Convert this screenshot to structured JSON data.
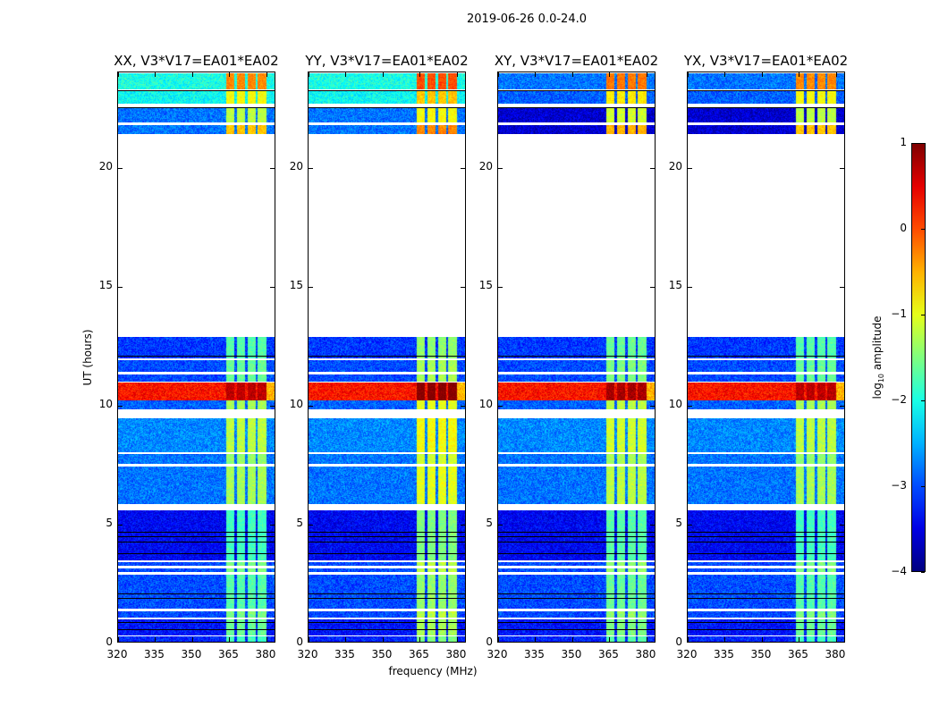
{
  "chart_data": {
    "type": "heatmap",
    "suptitle": "2019-06-26 0.0-24.0",
    "xlabel": "frequency (MHz)",
    "ylabel": "UT (hours)",
    "xlim": [
      320,
      384
    ],
    "ylim": [
      0,
      24
    ],
    "xticks": [
      "320",
      "335",
      "350",
      "365",
      "380"
    ],
    "xtick_values": [
      320,
      335,
      350,
      365,
      380
    ],
    "yticks": [
      "0",
      "5",
      "10",
      "15",
      "20"
    ],
    "ytick_values": [
      0,
      5,
      10,
      15,
      20
    ],
    "colorbar": {
      "label": "log10 amplitude",
      "label_main": "log",
      "label_sub": "10",
      "label_rest": " amplitude",
      "range": [
        -4,
        1
      ],
      "ticks": [
        "1",
        "0",
        "−1",
        "−2",
        "−3",
        "−4"
      ],
      "tick_values": [
        1,
        0,
        -1,
        -2,
        -3,
        -4
      ],
      "colormap": "jet"
    },
    "rfi_channels_mhz": [
      [
        363.5,
        366.8
      ],
      [
        367.8,
        371.2
      ],
      [
        372.2,
        375.5
      ],
      [
        376.3,
        379.8
      ]
    ],
    "segments_note": "[start_hour, end_hour, background log10 amp, RFI log10 amp]",
    "segments": [
      [
        0.0,
        0.3,
        -3.2,
        -1.8
      ],
      [
        0.35,
        1.0,
        -3.3,
        -1.6
      ],
      [
        1.1,
        1.35,
        -3.0,
        -1.5
      ],
      [
        1.45,
        2.9,
        -3.0,
        -1.7
      ],
      [
        3.0,
        3.15,
        -3.0,
        -1.5
      ],
      [
        3.25,
        3.4,
        -3.0,
        -1.5
      ],
      [
        3.5,
        5.6,
        -3.4,
        -1.8
      ],
      [
        5.85,
        7.45,
        -2.8,
        -1.3
      ],
      [
        7.55,
        7.95,
        -2.8,
        -1.4
      ],
      [
        8.05,
        9.45,
        -2.7,
        -1.2
      ],
      [
        9.85,
        10.2,
        -2.9,
        -1.3
      ],
      [
        10.2,
        10.95,
        0.3,
        0.7
      ],
      [
        11.0,
        11.3,
        -3.0,
        -1.6
      ],
      [
        11.4,
        11.9,
        -3.0,
        -1.6
      ],
      [
        12.0,
        12.9,
        -3.1,
        -1.7
      ],
      [
        21.4,
        21.8,
        -2.8,
        -0.6
      ],
      [
        21.9,
        22.5,
        -2.8,
        -1.2
      ],
      [
        22.7,
        23.2,
        -2.1,
        -0.9
      ],
      [
        23.3,
        23.95,
        -2.0,
        -0.3
      ]
    ],
    "flag_lines_hours": [
      0.6,
      0.9,
      1.9,
      2.1,
      3.8,
      4.3,
      4.5,
      4.7,
      12.1,
      22.55,
      23.25
    ],
    "panels": [
      {
        "title": "XX, V3*V17=EA01*EA02",
        "top_shift": 0.0,
        "rfi_shift": 0.0
      },
      {
        "title": "YY, V3*V17=EA01*EA02",
        "top_shift": 0.0,
        "rfi_shift": 0.3
      },
      {
        "title": "XY, V3*V17=EA01*EA02",
        "top_shift": -0.8,
        "rfi_shift": 0.1
      },
      {
        "title": "YX, V3*V17=EA01*EA02",
        "top_shift": -0.8,
        "rfi_shift": 0.0
      }
    ]
  }
}
